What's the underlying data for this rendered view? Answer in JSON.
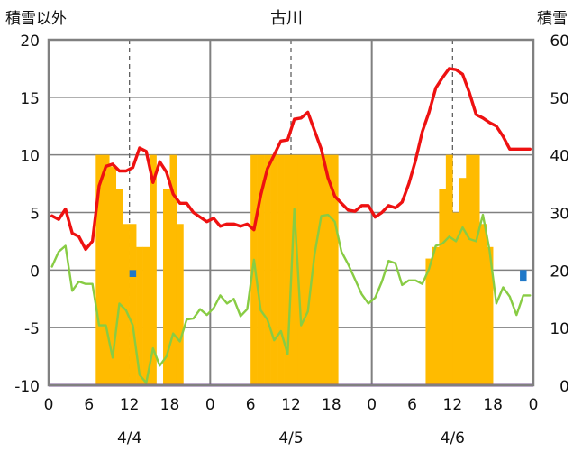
{
  "chart_data": {
    "type": "bar+line",
    "title": "古川",
    "left_axis_label": "積雪以外",
    "right_axis_label": "積雪",
    "left_ylim": [
      -10,
      20
    ],
    "left_yticks": [
      "20",
      "15",
      "10",
      "5",
      "0",
      "-5",
      "-10"
    ],
    "right_ylim": [
      0,
      60
    ],
    "right_yticks": [
      "60",
      "50",
      "40",
      "30",
      "20",
      "10",
      "0"
    ],
    "x_range_hours": [
      0,
      72
    ],
    "x_tick_labels": [
      "0",
      "6",
      "12",
      "18",
      "0",
      "6",
      "12",
      "18",
      "0",
      "6",
      "12",
      "18",
      "0"
    ],
    "date_labels": [
      "4/4",
      "4/5",
      "4/6"
    ],
    "colors": {
      "temperature": "#ee1111",
      "humidity_like": "#88cc44",
      "snow_depth": "#ffbb00",
      "negative_bar": "#1f78c8",
      "baseline": "#7030a0",
      "frame": "#808080"
    },
    "series": [
      {
        "type": "bar",
        "axis": "right",
        "values": [
          0,
          0,
          0,
          0,
          0,
          0,
          0,
          40,
          40,
          38,
          34,
          28,
          28,
          24,
          24,
          40,
          0,
          34,
          40,
          28,
          0,
          0,
          0,
          0,
          0,
          0,
          0,
          0,
          0,
          0,
          40,
          40,
          40,
          40,
          40,
          40,
          40,
          40,
          40,
          40,
          40,
          40,
          40,
          0,
          0,
          0,
          0,
          0,
          0,
          0,
          0,
          0,
          0,
          0,
          0,
          0,
          22,
          24,
          34,
          40,
          30,
          36,
          40,
          40,
          28,
          24,
          0,
          0,
          0,
          0,
          0,
          0
        ]
      },
      {
        "type": "bar",
        "axis": "left",
        "values": [
          0,
          0,
          0,
          0,
          0,
          0,
          0,
          0,
          0,
          0,
          0,
          0,
          -0.6,
          0,
          0,
          0,
          0,
          0,
          0,
          0,
          0,
          0,
          0,
          0,
          0,
          0,
          0,
          0,
          0,
          0,
          0,
          0,
          0,
          0,
          0,
          0,
          0,
          0,
          0,
          0,
          0,
          0,
          0,
          0,
          0,
          0,
          0,
          0,
          0,
          0,
          0,
          0,
          0,
          0,
          0,
          0,
          0,
          0,
          0,
          0,
          0,
          0,
          0,
          0,
          0,
          0,
          0,
          0,
          0,
          0,
          -1.0,
          0
        ]
      },
      {
        "type": "line",
        "axis": "left",
        "values": [
          4.7,
          4.4,
          5.3,
          3.2,
          2.9,
          1.8,
          2.5,
          7.3,
          9.0,
          9.2,
          8.6,
          8.6,
          8.9,
          10.6,
          10.3,
          7.6,
          9.4,
          8.5,
          6.6,
          5.8,
          5.8,
          5.0,
          4.6,
          4.2,
          4.5,
          3.8,
          4.0,
          4.0,
          3.8,
          4.0,
          3.5,
          6.5,
          8.8,
          10.0,
          11.2,
          11.3,
          13.1,
          13.2,
          13.7,
          12.1,
          10.5,
          8.0,
          6.4,
          5.8,
          5.2,
          5.1,
          5.6,
          5.6,
          4.6,
          5.0,
          5.6,
          5.4,
          5.9,
          7.5,
          9.5,
          12.0,
          13.7,
          15.8,
          16.7,
          17.5,
          17.4,
          17.0,
          15.4,
          13.5,
          13.2,
          12.8,
          12.5,
          11.6,
          10.5,
          10.5,
          10.5,
          10.5
        ]
      },
      {
        "type": "line",
        "axis": "left",
        "values": [
          0.3,
          1.6,
          2.1,
          -1.8,
          -1.0,
          -1.2,
          -1.2,
          -4.8,
          -4.8,
          -7.6,
          -2.9,
          -3.5,
          -4.8,
          -9.1,
          -9.8,
          -6.8,
          -8.3,
          -7.5,
          -5.5,
          -6.2,
          -4.3,
          -4.2,
          -3.4,
          -3.9,
          -3.3,
          -2.2,
          -2.9,
          -2.5,
          -4.0,
          -3.4,
          0.9,
          -3.5,
          -4.3,
          -6.1,
          -5.3,
          -7.3,
          5.3,
          -4.8,
          -3.6,
          1.4,
          4.7,
          4.8,
          4.2,
          1.6,
          0.5,
          -0.8,
          -2.1,
          -2.9,
          -2.4,
          -1.0,
          0.8,
          0.6,
          -1.3,
          -0.9,
          -0.9,
          -1.2,
          0.1,
          2.1,
          2.3,
          2.9,
          2.5,
          3.7,
          2.7,
          2.5,
          4.8,
          1.7,
          -2.9,
          -1.5,
          -2.3,
          -3.9,
          -2.2,
          -2.2
        ]
      },
      {
        "type": "line",
        "axis": "left",
        "values": [
          -10,
          -10
        ]
      }
    ],
    "grid": "dashed vertical at 12h, solid vertical at day boundaries, solid horizontal"
  }
}
